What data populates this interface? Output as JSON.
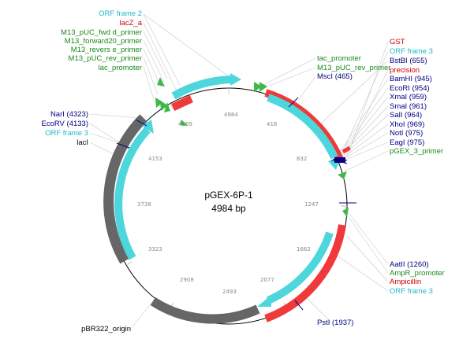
{
  "plasmid": {
    "name": "pGEX-6P-1",
    "size_label": "4984 bp",
    "length_bp": 4984
  },
  "colors": {
    "orf": "#4dd6dc",
    "feature_red": "#f0393a",
    "origin_gray": "#666666",
    "primer_green": "#3fb84a",
    "site_blue": "#000080",
    "label_red": "#cc0000",
    "label_cyan": "#20b8c8",
    "label_green": "#1a8a1a",
    "label_black": "#000000"
  },
  "ticks": [
    "4984",
    "416",
    "832",
    "1247",
    "1662",
    "2077",
    "2493",
    "2908",
    "3323",
    "3738",
    "4153",
    "4569"
  ],
  "labels": {
    "top_left": [
      {
        "text": "ORF frame 2",
        "color": "cyan"
      },
      {
        "text": "lacZ_a",
        "color": "red"
      },
      {
        "text": "M13_pUC_fwd d_primer",
        "color": "green"
      },
      {
        "text": "M13_forward20_primer",
        "color": "green"
      },
      {
        "text": "M13_revers e_primer",
        "color": "green"
      },
      {
        "text": "M13_pUC_rev_primer",
        "color": "green"
      },
      {
        "text": "lac_promoter",
        "color": "green"
      }
    ],
    "top_middle": [
      {
        "text": "tac_promoter",
        "color": "green"
      },
      {
        "text": "M13_pUC_rev_primer",
        "color": "green"
      },
      {
        "text": "MscI (465)",
        "color": "blue"
      }
    ],
    "right_top": [
      {
        "text": "GST",
        "color": "red"
      },
      {
        "text": "ORF frame 3",
        "color": "cyan"
      },
      {
        "text": "BstBI (655)",
        "color": "blue"
      },
      {
        "text": "precision",
        "color": "red"
      },
      {
        "text": "BamHI (945)",
        "color": "blue"
      },
      {
        "text": "EcoRI (954)",
        "color": "blue"
      },
      {
        "text": "XmaI (959)",
        "color": "blue"
      },
      {
        "text": "SmaI (961)",
        "color": "blue"
      },
      {
        "text": "SalI (964)",
        "color": "blue"
      },
      {
        "text": "XhoI (969)",
        "color": "blue"
      },
      {
        "text": "NotI (975)",
        "color": "blue"
      },
      {
        "text": "EagI (975)",
        "color": "blue"
      },
      {
        "text": "pGEX_3_primer",
        "color": "green"
      }
    ],
    "left_middle": [
      {
        "text": "NarI (4323)",
        "color": "blue"
      },
      {
        "text": "EcoRV (4133)",
        "color": "blue"
      },
      {
        "text": "ORF frame 3",
        "color": "cyan"
      },
      {
        "text": "lacI",
        "color": "black"
      }
    ],
    "right_bottom": [
      {
        "text": "AatII (1260)",
        "color": "blue"
      },
      {
        "text": "AmpR_promoter",
        "color": "green"
      },
      {
        "text": "Ampicillin",
        "color": "red"
      },
      {
        "text": "ORF frame 3",
        "color": "cyan"
      }
    ],
    "bottom": [
      {
        "text": "PstI (1937)",
        "color": "blue"
      },
      {
        "text": "pBR322_origin",
        "color": "black"
      }
    ]
  }
}
